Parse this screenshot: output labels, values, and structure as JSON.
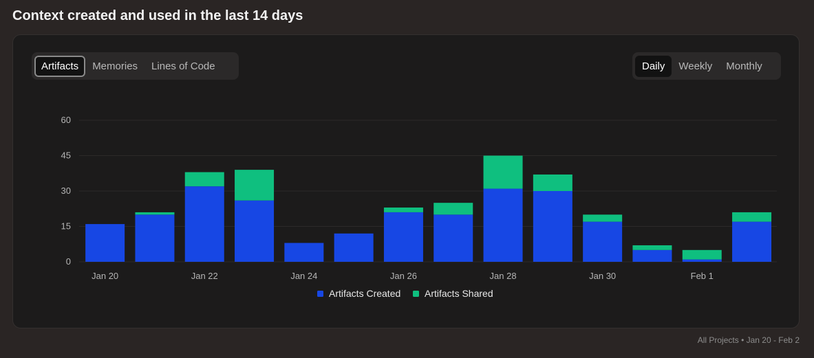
{
  "page": {
    "title": "Context created and used in the last 14 days"
  },
  "metric_tabs": [
    {
      "label": "Artifacts",
      "active": true
    },
    {
      "label": "Memories",
      "active": false
    },
    {
      "label": "Lines of Code",
      "active": false
    }
  ],
  "period_tabs": [
    {
      "label": "Daily",
      "active": true
    },
    {
      "label": "Weekly",
      "active": false
    },
    {
      "label": "Monthly",
      "active": false
    }
  ],
  "footer": {
    "scope": "All Projects",
    "separator": " • ",
    "range": "Jan 20 - Feb 2"
  },
  "colors": {
    "created": "#1747e4",
    "shared": "#0fbf7f",
    "grid": "#2c2a29",
    "tick_text": "#b5b5b5"
  },
  "chart_data": {
    "type": "bar",
    "stacked": true,
    "categories": [
      "Jan 20",
      "Jan 21",
      "Jan 22",
      "Jan 23",
      "Jan 24",
      "Jan 25",
      "Jan 26",
      "Jan 27",
      "Jan 28",
      "Jan 29",
      "Jan 30",
      "Jan 31",
      "Feb 1",
      "Feb 2"
    ],
    "x_tick_labels": [
      "Jan 20",
      "",
      "Jan 22",
      "",
      "Jan 24",
      "",
      "Jan 26",
      "",
      "Jan 28",
      "",
      "Jan 30",
      "",
      "Feb 1",
      ""
    ],
    "series": [
      {
        "name": "Artifacts Created",
        "values": [
          16,
          20,
          32,
          26,
          8,
          12,
          21,
          20,
          31,
          30,
          17,
          5,
          1,
          17
        ]
      },
      {
        "name": "Artifacts Shared",
        "values": [
          0,
          1,
          6,
          13,
          0,
          0,
          2,
          5,
          14,
          7,
          3,
          2,
          4,
          4
        ]
      }
    ],
    "ylim": [
      0,
      60
    ],
    "yticks": [
      0,
      15,
      30,
      45,
      60
    ],
    "grid": true,
    "legend": "bottom-center"
  }
}
